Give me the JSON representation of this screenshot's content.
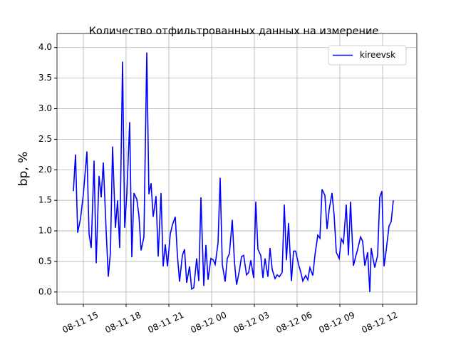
{
  "chart_data": {
    "type": "line",
    "title": "Количество отфильтрованных данных на измерение",
    "y_label": "bp, %",
    "x": [
      14.3,
      14.45,
      14.6,
      14.8,
      15,
      15.25,
      15.4,
      15.55,
      15.75,
      15.9,
      16.1,
      16.25,
      16.4,
      16.6,
      16.75,
      16.9,
      17.05,
      17.25,
      17.4,
      17.55,
      17.75,
      17.9,
      18.05,
      18.25,
      18.4,
      18.55,
      18.75,
      18.9,
      19.05,
      19.25,
      19.45,
      19.6,
      19.75,
      19.9,
      20.1,
      20.25,
      20.45,
      20.6,
      20.75,
      20.9,
      21.1,
      21.25,
      21.45,
      21.6,
      21.75,
      21.95,
      22.1,
      22.25,
      22.45,
      22.6,
      22.75,
      22.95,
      23.1,
      23.25,
      23.45,
      23.6,
      23.75,
      23.95,
      24.1,
      24.25,
      24.45,
      24.6,
      24.75,
      24.95,
      25.1,
      25.25,
      25.45,
      25.6,
      25.75,
      25.95,
      26.1,
      26.25,
      26.45,
      26.6,
      26.75,
      26.95,
      27.1,
      27.25,
      27.45,
      27.6,
      27.75,
      27.95,
      28.1,
      28.25,
      28.45,
      28.6,
      28.75,
      28.95,
      29.1,
      29.25,
      29.4,
      29.6,
      29.75,
      29.9,
      30.1,
      30.25,
      30.4,
      30.6,
      30.75,
      30.9,
      31.1,
      31.25,
      31.45,
      31.6,
      31.75,
      31.95,
      32.1,
      32.25,
      32.45,
      32.6,
      32.75,
      32.95,
      33.1,
      33.25,
      33.45,
      33.6,
      33.75,
      33.95,
      34.1,
      34.25,
      34.45,
      34.6,
      34.75,
      34.95,
      35.1,
      35.2,
      35.3,
      35.45,
      35.65,
      35.8,
      35.95,
      36.1,
      36.25,
      36.45,
      36.6,
      36.75
    ],
    "series": [
      {
        "name": "kireevsk",
        "color": "#0000ff",
        "values": [
          1.65,
          2.25,
          0.97,
          1.2,
          1.6,
          2.3,
          0.95,
          0.72,
          2.15,
          0.47,
          1.9,
          1.55,
          2.12,
          1.0,
          0.25,
          0.65,
          2.38,
          1.05,
          1.5,
          0.72,
          3.77,
          1.05,
          1.6,
          2.78,
          0.57,
          1.62,
          1.52,
          1.25,
          0.68,
          0.9,
          3.92,
          1.6,
          1.78,
          1.23,
          1.57,
          0.58,
          1.62,
          0.42,
          0.78,
          0.42,
          0.95,
          1.1,
          1.23,
          0.6,
          0.17,
          0.6,
          0.7,
          0.15,
          0.42,
          0.05,
          0.07,
          0.55,
          0.18,
          1.55,
          0.1,
          0.77,
          0.2,
          0.55,
          0.53,
          0.45,
          0.8,
          1.87,
          0.45,
          0.17,
          0.55,
          0.63,
          1.18,
          0.5,
          0.12,
          0.35,
          0.58,
          0.6,
          0.28,
          0.32,
          0.52,
          0.23,
          1.48,
          0.7,
          0.6,
          0.23,
          0.55,
          0.25,
          0.72,
          0.37,
          0.22,
          0.28,
          0.25,
          0.32,
          1.43,
          0.52,
          1.13,
          0.18,
          0.67,
          0.67,
          0.45,
          0.33,
          0.18,
          0.27,
          0.2,
          0.4,
          0.27,
          0.6,
          0.93,
          0.88,
          1.68,
          1.58,
          1.03,
          1.35,
          1.62,
          1.25,
          0.65,
          0.55,
          0.87,
          0.8,
          1.43,
          0.6,
          1.48,
          0.43,
          0.57,
          0.7,
          0.9,
          0.83,
          0.43,
          0.65,
          0.0,
          0.72,
          0.58,
          0.4,
          0.6,
          1.55,
          1.65,
          0.42,
          0.68,
          1.08,
          1.15,
          1.5
        ]
      }
    ],
    "xlim": [
      13.15,
      38.4
    ],
    "xticks": [
      {
        "value": 15,
        "label": "08-11 15"
      },
      {
        "value": 18,
        "label": "08-11 18"
      },
      {
        "value": 21,
        "label": "08-11 21"
      },
      {
        "value": 24,
        "label": "08-12 00"
      },
      {
        "value": 27,
        "label": "08-12 03"
      },
      {
        "value": 30,
        "label": "08-12 06"
      },
      {
        "value": 33,
        "label": "08-12 09"
      },
      {
        "value": 36,
        "label": "08-12 12"
      }
    ],
    "ylim": [
      -0.2,
      4.23
    ],
    "yticks": [
      {
        "value": 0,
        "label": "0.0"
      },
      {
        "value": 0.5,
        "label": "0.5"
      },
      {
        "value": 1,
        "label": "1.0"
      },
      {
        "value": 1.5,
        "label": "1.5"
      },
      {
        "value": 2,
        "label": "2.0"
      },
      {
        "value": 2.5,
        "label": "2.5"
      },
      {
        "value": 3,
        "label": "3.0"
      },
      {
        "value": 3.5,
        "label": "3.5"
      },
      {
        "value": 4,
        "label": "4.0"
      }
    ],
    "grid": true,
    "legend": "upper right"
  }
}
